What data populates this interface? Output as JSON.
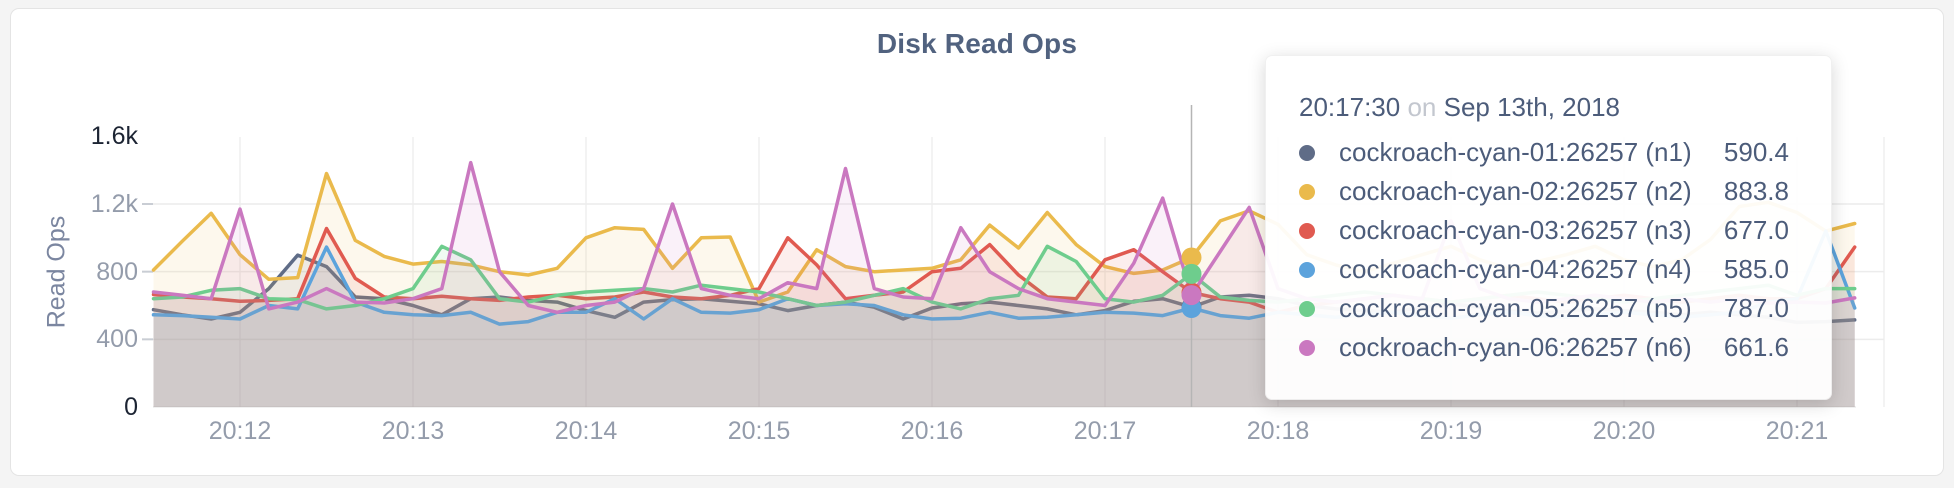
{
  "page": {
    "background": "#f4f4f4"
  },
  "chart": {
    "title": "Disk Read Ops",
    "y_axis_label": "Read Ops",
    "tooltip": {
      "time": "20:17:30",
      "conjunction": "on",
      "date": "Sep 13th, 2018",
      "rows": [
        {
          "label": "cockroach-cyan-01:26257 (n1)",
          "value": "590.4"
        },
        {
          "label": "cockroach-cyan-02:26257 (n2)",
          "value": "883.8"
        },
        {
          "label": "cockroach-cyan-03:26257 (n3)",
          "value": "677.0"
        },
        {
          "label": "cockroach-cyan-04:26257 (n4)",
          "value": "585.0"
        },
        {
          "label": "cockroach-cyan-05:26257 (n5)",
          "value": "787.0"
        },
        {
          "label": "cockroach-cyan-06:26257 (n6)",
          "value": "661.6"
        }
      ]
    }
  },
  "chart_data": {
    "type": "line",
    "title": "Disk Read Ops",
    "ylabel": "Read Ops",
    "ylim": [
      0,
      1600
    ],
    "grid": true,
    "x_start_time": "20:11:30",
    "x_step_seconds": 10,
    "x_ticks": [
      "20:12",
      "20:13",
      "20:14",
      "20:15",
      "20:16",
      "20:17",
      "20:18",
      "20:19",
      "20:20",
      "20:21"
    ],
    "y_ticks": [
      {
        "label": "0",
        "value": 0,
        "emphasis": true,
        "dash": false
      },
      {
        "label": "400",
        "value": 400,
        "emphasis": false,
        "dash": true
      },
      {
        "label": "800",
        "value": 800,
        "emphasis": false,
        "dash": true
      },
      {
        "label": "1.2k",
        "value": 1200,
        "emphasis": false,
        "dash": true
      },
      {
        "label": "1.6k",
        "value": 1600,
        "emphasis": true,
        "dash": false
      }
    ],
    "hover": {
      "time": "20:17:30",
      "index": 36
    },
    "series": [
      {
        "name": "cockroach-cyan-01:26257 (n1)",
        "color": "#5f6c87",
        "values": [
          575,
          545,
          520,
          560,
          700,
          898,
          830,
          650,
          640,
          600,
          545,
          640,
          650,
          630,
          620,
          570,
          530,
          620,
          635,
          640,
          625,
          610,
          570,
          600,
          620,
          590,
          520,
          585,
          610,
          620,
          600,
          580,
          545,
          570,
          625,
          640,
          590.4,
          650,
          660,
          640,
          600,
          580,
          570,
          560,
          590,
          610,
          590,
          570,
          555,
          565,
          580,
          570,
          560,
          545,
          560,
          545,
          530,
          500,
          505,
          515
        ]
      },
      {
        "name": "cockroach-cyan-02:26257 (n2)",
        "color": "#eaba4c",
        "values": [
          810,
          980,
          1145,
          900,
          755,
          765,
          1380,
          985,
          890,
          845,
          860,
          840,
          800,
          780,
          820,
          1000,
          1060,
          1050,
          820,
          1000,
          1005,
          620,
          680,
          930,
          830,
          800,
          810,
          820,
          870,
          1075,
          940,
          1150,
          960,
          830,
          790,
          810,
          883.8,
          1100,
          1160,
          1080,
          900,
          840,
          800,
          850,
          900,
          950,
          870,
          820,
          860,
          900,
          950,
          870,
          830,
          870,
          990,
          1185,
          1210,
          1150,
          1040,
          1085
        ]
      },
      {
        "name": "cockroach-cyan-03:26257 (n3)",
        "color": "#e05a50",
        "values": [
          665,
          650,
          640,
          625,
          630,
          640,
          1055,
          760,
          650,
          640,
          655,
          640,
          630,
          650,
          660,
          640,
          650,
          680,
          650,
          640,
          660,
          700,
          1000,
          840,
          640,
          660,
          680,
          800,
          820,
          960,
          780,
          650,
          640,
          870,
          930,
          800,
          677,
          640,
          620,
          560,
          600,
          620,
          640,
          660,
          640,
          620,
          640,
          660,
          640,
          620,
          640,
          660,
          640,
          620,
          640,
          660,
          640,
          640,
          700,
          945
        ]
      },
      {
        "name": "cockroach-cyan-04:26257 (n4)",
        "color": "#5ca3dc",
        "values": [
          545,
          540,
          530,
          520,
          600,
          580,
          945,
          620,
          560,
          545,
          540,
          560,
          490,
          505,
          560,
          560,
          640,
          520,
          640,
          560,
          555,
          575,
          640,
          600,
          610,
          600,
          545,
          520,
          525,
          560,
          525,
          530,
          545,
          560,
          555,
          540,
          585,
          540,
          525,
          560,
          545,
          530,
          545,
          560,
          540,
          525,
          545,
          560,
          540,
          530,
          545,
          560,
          545,
          530,
          545,
          560,
          620,
          640,
          1040,
          585
        ]
      },
      {
        "name": "cockroach-cyan-05:26257 (n5)",
        "color": "#6ecd8d",
        "values": [
          640,
          650,
          690,
          700,
          640,
          635,
          580,
          600,
          640,
          700,
          950,
          870,
          640,
          620,
          660,
          680,
          690,
          700,
          680,
          720,
          700,
          680,
          640,
          600,
          620,
          660,
          700,
          620,
          580,
          640,
          660,
          950,
          860,
          640,
          620,
          660,
          787,
          650,
          630,
          620,
          640,
          660,
          680,
          660,
          640,
          620,
          640,
          660,
          680,
          660,
          640,
          620,
          640,
          660,
          680,
          700,
          720,
          660,
          700,
          700
        ]
      },
      {
        "name": "cockroach-cyan-06:26257 (n6)",
        "color": "#ca78c0",
        "values": [
          680,
          660,
          640,
          1170,
          580,
          620,
          700,
          620,
          615,
          640,
          700,
          1445,
          800,
          600,
          560,
          600,
          620,
          700,
          1200,
          700,
          660,
          640,
          735,
          700,
          1410,
          700,
          650,
          640,
          1060,
          800,
          700,
          640,
          620,
          600,
          850,
          1235,
          661.6,
          920,
          1180,
          700,
          640,
          620,
          640,
          660,
          640,
          1100,
          700,
          640,
          620,
          640,
          660,
          640,
          620,
          640,
          620,
          640,
          615,
          620,
          615,
          645
        ]
      }
    ]
  }
}
